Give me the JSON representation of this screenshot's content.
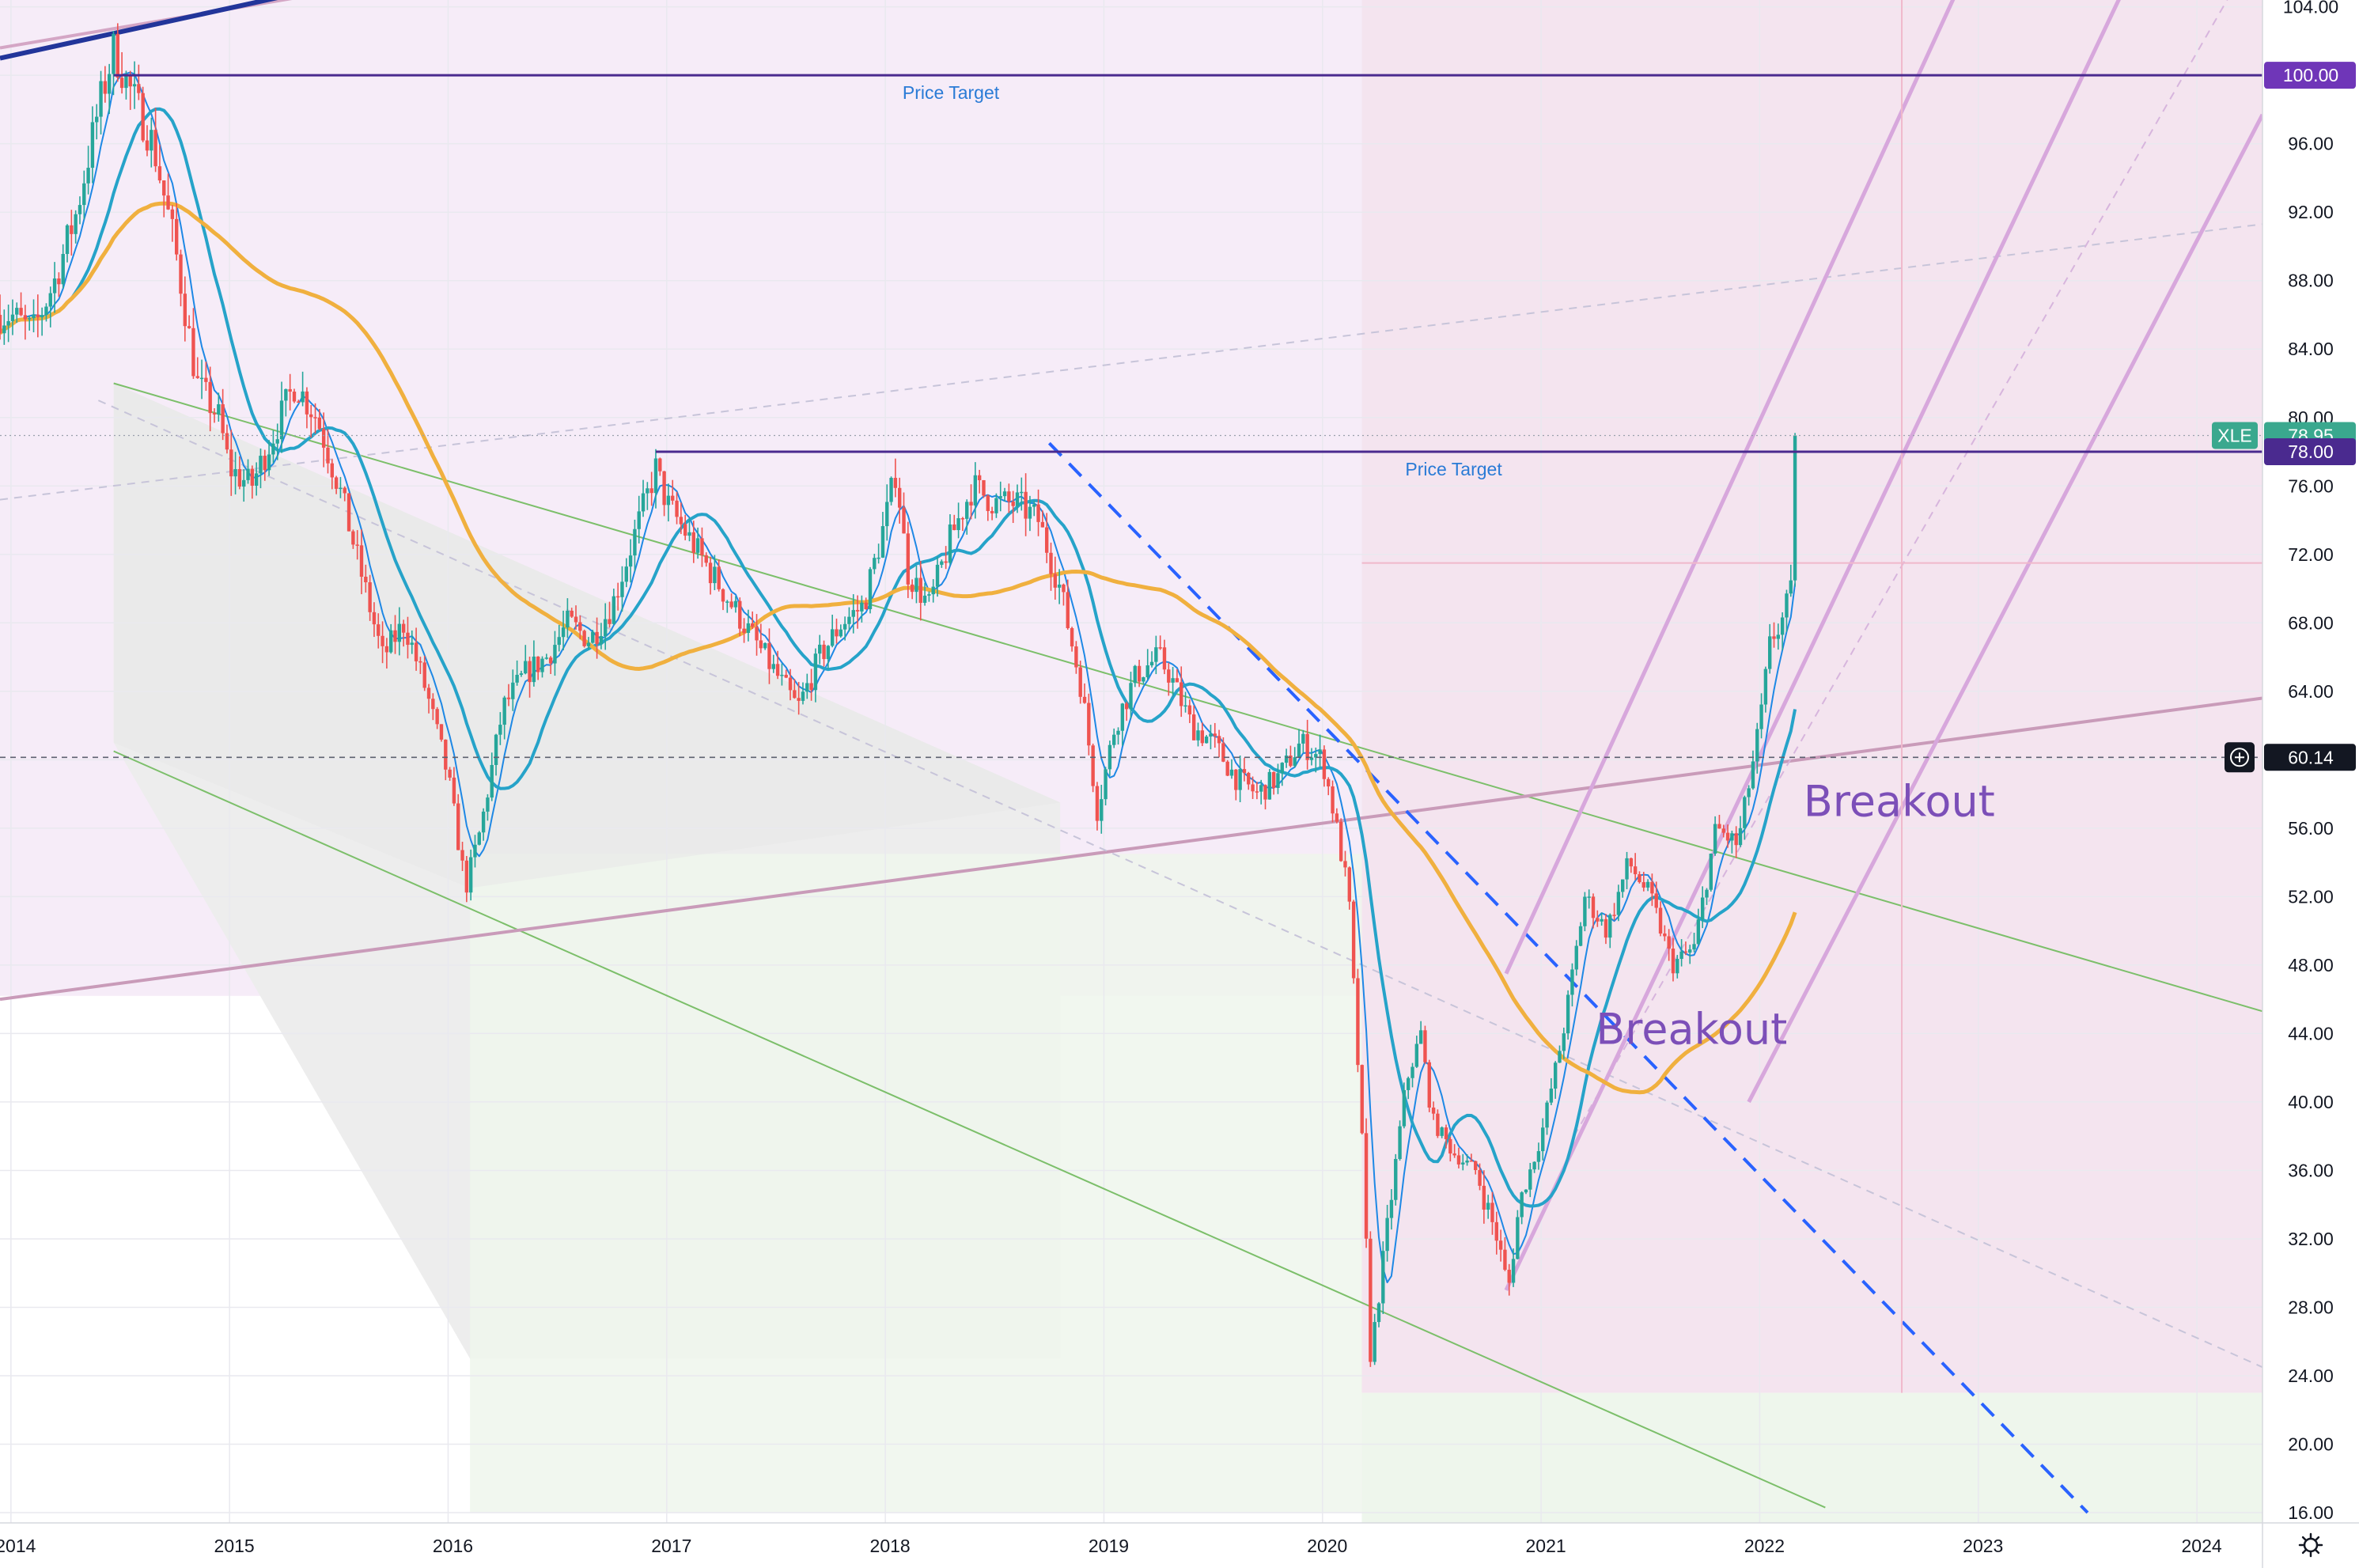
{
  "chart_data": {
    "type": "candlestick",
    "ticker": "XLE",
    "x_axis": {
      "tick_labels": [
        "2014",
        "2015",
        "2016",
        "2017",
        "2018",
        "2019",
        "2020",
        "2021",
        "2022",
        "2023",
        "2024"
      ],
      "range": [
        2013.95,
        2024.3
      ]
    },
    "y_axis": {
      "tick_labels": [
        "104.00",
        "100.00",
        "96.00",
        "92.00",
        "88.00",
        "84.00",
        "80.00",
        "76.00",
        "72.00",
        "68.00",
        "64.00",
        "60.00",
        "56.00",
        "52.00",
        "48.00",
        "44.00",
        "40.00",
        "36.00",
        "32.00",
        "28.00",
        "24.00",
        "20.00",
        "16.00"
      ],
      "range": [
        15.4,
        104.4
      ],
      "position": "right"
    },
    "price_path": [
      [
        2014.0,
        86
      ],
      [
        2014.1,
        85
      ],
      [
        2014.2,
        88
      ],
      [
        2014.3,
        92
      ],
      [
        2014.4,
        98
      ],
      [
        2014.47,
        101.5
      ],
      [
        2014.55,
        99
      ],
      [
        2014.65,
        96
      ],
      [
        2014.75,
        90
      ],
      [
        2014.85,
        82
      ],
      [
        2014.95,
        80
      ],
      [
        2015.0,
        77
      ],
      [
        2015.1,
        76
      ],
      [
        2015.2,
        79
      ],
      [
        2015.3,
        82
      ],
      [
        2015.4,
        80
      ],
      [
        2015.5,
        76
      ],
      [
        2015.6,
        71
      ],
      [
        2015.7,
        66
      ],
      [
        2015.8,
        68
      ],
      [
        2015.9,
        64
      ],
      [
        2016.0,
        59
      ],
      [
        2016.08,
        52.5
      ],
      [
        2016.15,
        56
      ],
      [
        2016.25,
        63
      ],
      [
        2016.35,
        65
      ],
      [
        2016.45,
        66
      ],
      [
        2016.55,
        68
      ],
      [
        2016.65,
        67
      ],
      [
        2016.75,
        69
      ],
      [
        2016.85,
        73
      ],
      [
        2016.95,
        77
      ],
      [
        2017.0,
        75
      ],
      [
        2017.1,
        73
      ],
      [
        2017.2,
        71
      ],
      [
        2017.3,
        69
      ],
      [
        2017.4,
        67
      ],
      [
        2017.5,
        65
      ],
      [
        2017.6,
        63
      ],
      [
        2017.7,
        66
      ],
      [
        2017.8,
        68
      ],
      [
        2017.9,
        69
      ],
      [
        2018.0,
        74
      ],
      [
        2018.05,
        77
      ],
      [
        2018.1,
        71
      ],
      [
        2018.2,
        69
      ],
      [
        2018.3,
        73
      ],
      [
        2018.4,
        76
      ],
      [
        2018.5,
        75
      ],
      [
        2018.6,
        75
      ],
      [
        2018.7,
        74
      ],
      [
        2018.8,
        70
      ],
      [
        2018.9,
        64
      ],
      [
        2018.97,
        57
      ],
      [
        2019.05,
        62
      ],
      [
        2019.15,
        65
      ],
      [
        2019.25,
        66
      ],
      [
        2019.3,
        65
      ],
      [
        2019.4,
        62
      ],
      [
        2019.5,
        61
      ],
      [
        2019.6,
        59
      ],
      [
        2019.7,
        58
      ],
      [
        2019.8,
        59
      ],
      [
        2019.9,
        61
      ],
      [
        2020.0,
        60
      ],
      [
        2020.05,
        57
      ],
      [
        2020.12,
        52
      ],
      [
        2020.18,
        38
      ],
      [
        2020.22,
        25
      ],
      [
        2020.3,
        33
      ],
      [
        2020.38,
        41
      ],
      [
        2020.45,
        44
      ],
      [
        2020.5,
        39
      ],
      [
        2020.6,
        37
      ],
      [
        2020.7,
        36
      ],
      [
        2020.8,
        32
      ],
      [
        2020.85,
        29
      ],
      [
        2020.9,
        34
      ],
      [
        2021.0,
        38
      ],
      [
        2021.1,
        44
      ],
      [
        2021.2,
        52
      ],
      [
        2021.3,
        50
      ],
      [
        2021.4,
        54
      ],
      [
        2021.5,
        52
      ],
      [
        2021.6,
        48
      ],
      [
        2021.7,
        49
      ],
      [
        2021.8,
        56
      ],
      [
        2021.9,
        55
      ],
      [
        2022.0,
        62
      ],
      [
        2022.05,
        67
      ],
      [
        2022.1,
        68
      ],
      [
        2022.15,
        70
      ],
      [
        2022.18,
        78.95
      ]
    ],
    "series": [
      {
        "name": "",
        "color": "#1e88e5",
        "kind": "moving-average-short"
      },
      {
        "name": "",
        "color": "#26a3c9",
        "kind": "moving-average-medium"
      },
      {
        "name": "",
        "color": "#f0b03f",
        "kind": "moving-average-long"
      }
    ],
    "price_targets": [
      {
        "label": "Price Target",
        "value": 100.0,
        "badge": "100.00"
      },
      {
        "label": "Price Target",
        "value": 78.0,
        "badge": "78.00"
      }
    ],
    "annotations": [
      {
        "text": "Breakout",
        "x": 2022.2,
        "y": 56.7
      },
      {
        "text": "Breakout",
        "x": 2021.25,
        "y": 43.4
      }
    ],
    "last_price": {
      "symbol": "XLE",
      "value": "78.95"
    },
    "crosshair": {
      "value": "60.14"
    },
    "colors": {
      "up": "#26a69a",
      "down": "#ef5350",
      "target": "#4a2a8f",
      "channel": "#7cbf6a",
      "pitchfork": "#d7a7dc",
      "downtrend": "#2962ff"
    }
  }
}
